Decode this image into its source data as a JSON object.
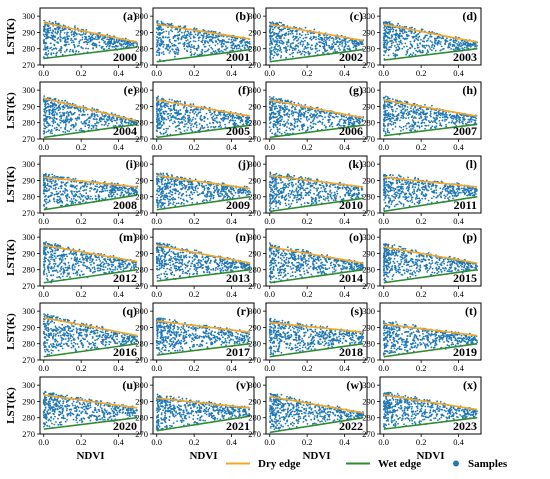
{
  "chart_data": {
    "type": "scatter",
    "ylabel": "LST(K)",
    "xlabel": "NDVI",
    "xlim": [
      -0.02,
      0.52
    ],
    "ylim": [
      270,
      305
    ],
    "x_ticks": [
      0.0,
      0.2,
      0.4
    ],
    "y_ticks": [
      270,
      280,
      290,
      300
    ],
    "legend": {
      "placement": "bottom",
      "items": [
        {
          "label": "Dry edge",
          "color": "#f5a623",
          "kind": "line"
        },
        {
          "label": "Wet edge",
          "color": "#2e8b2e",
          "kind": "line"
        },
        {
          "label": "Samples",
          "color": "#1f77b4",
          "kind": "marker"
        }
      ]
    },
    "colors": {
      "samples": "#1f77b4",
      "dry_edge": "#f5a623",
      "wet_edge": "#2e8b2e"
    },
    "panels": [
      {
        "tag": "(a)",
        "year": "2000",
        "dry_edge": {
          "slope": -24,
          "intercept": 296
        },
        "wet_edge": {
          "slope": 14,
          "intercept": 274
        }
      },
      {
        "tag": "(b)",
        "year": "2001",
        "dry_edge": {
          "slope": -18,
          "intercept": 295
        },
        "wet_edge": {
          "slope": 15,
          "intercept": 272
        }
      },
      {
        "tag": "(c)",
        "year": "2002",
        "dry_edge": {
          "slope": -20,
          "intercept": 295
        },
        "wet_edge": {
          "slope": 15,
          "intercept": 272
        }
      },
      {
        "tag": "(d)",
        "year": "2003",
        "dry_edge": {
          "slope": -22,
          "intercept": 295
        },
        "wet_edge": {
          "slope": 14,
          "intercept": 273
        }
      },
      {
        "tag": "(e)",
        "year": "2004",
        "dry_edge": {
          "slope": -28,
          "intercept": 295
        },
        "wet_edge": {
          "slope": 16,
          "intercept": 271
        }
      },
      {
        "tag": "(f)",
        "year": "2005",
        "dry_edge": {
          "slope": -20,
          "intercept": 294
        },
        "wet_edge": {
          "slope": 15,
          "intercept": 271
        }
      },
      {
        "tag": "(g)",
        "year": "2006",
        "dry_edge": {
          "slope": -22,
          "intercept": 294
        },
        "wet_edge": {
          "slope": 15,
          "intercept": 271
        }
      },
      {
        "tag": "(h)",
        "year": "2007",
        "dry_edge": {
          "slope": -20,
          "intercept": 294
        },
        "wet_edge": {
          "slope": 14,
          "intercept": 272
        }
      },
      {
        "tag": "(i)",
        "year": "2008",
        "dry_edge": {
          "slope": -12,
          "intercept": 292
        },
        "wet_edge": {
          "slope": 18,
          "intercept": 272
        }
      },
      {
        "tag": "(j)",
        "year": "2009",
        "dry_edge": {
          "slope": -16,
          "intercept": 293
        },
        "wet_edge": {
          "slope": 16,
          "intercept": 272
        }
      },
      {
        "tag": "(k)",
        "year": "2010",
        "dry_edge": {
          "slope": -14,
          "intercept": 293
        },
        "wet_edge": {
          "slope": 16,
          "intercept": 271
        }
      },
      {
        "tag": "(l)",
        "year": "2011",
        "dry_edge": {
          "slope": -12,
          "intercept": 292
        },
        "wet_edge": {
          "slope": 18,
          "intercept": 271
        }
      },
      {
        "tag": "(m)",
        "year": "2012",
        "dry_edge": {
          "slope": -20,
          "intercept": 295
        },
        "wet_edge": {
          "slope": 16,
          "intercept": 272
        }
      },
      {
        "tag": "(n)",
        "year": "2013",
        "dry_edge": {
          "slope": -22,
          "intercept": 295
        },
        "wet_edge": {
          "slope": 14,
          "intercept": 273
        }
      },
      {
        "tag": "(o)",
        "year": "2014",
        "dry_edge": {
          "slope": -20,
          "intercept": 294
        },
        "wet_edge": {
          "slope": 16,
          "intercept": 272
        }
      },
      {
        "tag": "(p)",
        "year": "2015",
        "dry_edge": {
          "slope": -20,
          "intercept": 294
        },
        "wet_edge": {
          "slope": 16,
          "intercept": 272
        }
      },
      {
        "tag": "(q)",
        "year": "2016",
        "dry_edge": {
          "slope": -22,
          "intercept": 296
        },
        "wet_edge": {
          "slope": 16,
          "intercept": 272
        }
      },
      {
        "tag": "(r)",
        "year": "2017",
        "dry_edge": {
          "slope": -14,
          "intercept": 294
        },
        "wet_edge": {
          "slope": 14,
          "intercept": 273
        }
      },
      {
        "tag": "(s)",
        "year": "2018",
        "dry_edge": {
          "slope": -12,
          "intercept": 293
        },
        "wet_edge": {
          "slope": 16,
          "intercept": 272
        }
      },
      {
        "tag": "(t)",
        "year": "2019",
        "dry_edge": {
          "slope": -14,
          "intercept": 292
        },
        "wet_edge": {
          "slope": 16,
          "intercept": 272
        }
      },
      {
        "tag": "(u)",
        "year": "2020",
        "dry_edge": {
          "slope": -16,
          "intercept": 294
        },
        "wet_edge": {
          "slope": 14,
          "intercept": 273
        }
      },
      {
        "tag": "(v)",
        "year": "2021",
        "dry_edge": {
          "slope": -12,
          "intercept": 292
        },
        "wet_edge": {
          "slope": 18,
          "intercept": 272
        }
      },
      {
        "tag": "(w)",
        "year": "2022",
        "dry_edge": {
          "slope": -20,
          "intercept": 293
        },
        "wet_edge": {
          "slope": 18,
          "intercept": 271
        }
      },
      {
        "tag": "(x)",
        "year": "2023",
        "dry_edge": {
          "slope": -18,
          "intercept": 294
        },
        "wet_edge": {
          "slope": 14,
          "intercept": 273
        }
      }
    ]
  }
}
